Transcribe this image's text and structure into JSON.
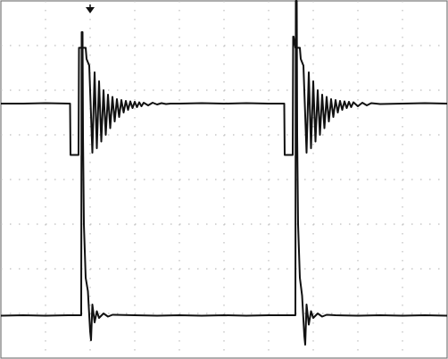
{
  "chart_data": {
    "type": "line",
    "title": "",
    "xlabel": "",
    "ylabel": "",
    "grid": true,
    "x_divisions": 10,
    "y_divisions": 8,
    "xlim": [
      0,
      10
    ],
    "ylim": [
      0,
      8
    ],
    "trigger_marker": {
      "icon": "trigger-arrow-icon",
      "x": 2.0
    },
    "series": [
      {
        "line_color": "#111111",
        "points": [
          [
            0.0,
            5.7
          ],
          [
            0.5,
            5.7
          ],
          [
            1.0,
            5.71
          ],
          [
            1.55,
            5.7
          ],
          [
            1.56,
            4.55
          ],
          [
            1.74,
            4.55
          ],
          [
            1.75,
            6.95
          ],
          [
            1.9,
            6.95
          ],
          [
            1.92,
            6.7
          ],
          [
            1.98,
            6.55
          ],
          [
            2.05,
            4.6
          ],
          [
            2.1,
            6.4
          ],
          [
            2.15,
            4.7
          ],
          [
            2.2,
            6.2
          ],
          [
            2.25,
            4.85
          ],
          [
            2.3,
            6.0
          ],
          [
            2.35,
            5.0
          ],
          [
            2.4,
            5.9
          ],
          [
            2.45,
            5.15
          ],
          [
            2.5,
            5.85
          ],
          [
            2.55,
            5.3
          ],
          [
            2.6,
            5.8
          ],
          [
            2.65,
            5.4
          ],
          [
            2.7,
            5.78
          ],
          [
            2.75,
            5.5
          ],
          [
            2.8,
            5.76
          ],
          [
            2.85,
            5.56
          ],
          [
            2.9,
            5.75
          ],
          [
            2.95,
            5.6
          ],
          [
            3.0,
            5.74
          ],
          [
            3.05,
            5.62
          ],
          [
            3.1,
            5.73
          ],
          [
            3.15,
            5.64
          ],
          [
            3.2,
            5.72
          ],
          [
            3.3,
            5.66
          ],
          [
            3.4,
            5.72
          ],
          [
            3.5,
            5.68
          ],
          [
            3.6,
            5.71
          ],
          [
            3.7,
            5.69
          ],
          [
            3.8,
            5.7
          ],
          [
            4.0,
            5.7
          ],
          [
            4.5,
            5.71
          ],
          [
            5.0,
            5.7
          ],
          [
            5.5,
            5.71
          ],
          [
            6.0,
            5.7
          ],
          [
            6.35,
            5.7
          ],
          [
            6.36,
            4.55
          ],
          [
            6.54,
            4.55
          ],
          [
            6.55,
            7.2
          ],
          [
            6.56,
            7.2
          ],
          [
            6.6,
            6.95
          ],
          [
            6.7,
            6.95
          ],
          [
            6.72,
            6.7
          ],
          [
            6.78,
            6.55
          ],
          [
            6.85,
            4.6
          ],
          [
            6.9,
            6.4
          ],
          [
            6.95,
            4.7
          ],
          [
            7.0,
            6.2
          ],
          [
            7.05,
            4.85
          ],
          [
            7.1,
            6.0
          ],
          [
            7.15,
            5.0
          ],
          [
            7.2,
            5.9
          ],
          [
            7.25,
            5.15
          ],
          [
            7.3,
            5.85
          ],
          [
            7.35,
            5.3
          ],
          [
            7.4,
            5.8
          ],
          [
            7.45,
            5.4
          ],
          [
            7.5,
            5.78
          ],
          [
            7.55,
            5.5
          ],
          [
            7.6,
            5.76
          ],
          [
            7.65,
            5.56
          ],
          [
            7.7,
            5.75
          ],
          [
            7.75,
            5.6
          ],
          [
            7.8,
            5.74
          ],
          [
            7.85,
            5.62
          ],
          [
            7.9,
            5.73
          ],
          [
            8.0,
            5.64
          ],
          [
            8.1,
            5.72
          ],
          [
            8.2,
            5.66
          ],
          [
            8.3,
            5.71
          ],
          [
            8.5,
            5.69
          ],
          [
            9.0,
            5.7
          ],
          [
            9.5,
            5.71
          ],
          [
            10.0,
            5.7
          ]
        ]
      },
      {
        "line_color": "#111111",
        "points": [
          [
            0.0,
            0.95
          ],
          [
            0.5,
            0.96
          ],
          [
            1.0,
            0.95
          ],
          [
            1.5,
            0.96
          ],
          [
            1.8,
            0.96
          ],
          [
            1.81,
            7.3
          ],
          [
            1.83,
            7.3
          ],
          [
            1.84,
            5.0
          ],
          [
            1.86,
            3.0
          ],
          [
            1.9,
            1.8
          ],
          [
            1.95,
            1.5
          ],
          [
            2.0,
            0.6
          ],
          [
            2.02,
            0.4
          ],
          [
            2.05,
            1.2
          ],
          [
            2.1,
            0.8
          ],
          [
            2.15,
            1.05
          ],
          [
            2.2,
            0.9
          ],
          [
            2.3,
            1.0
          ],
          [
            2.4,
            0.93
          ],
          [
            2.5,
            0.97
          ],
          [
            3.0,
            0.96
          ],
          [
            3.5,
            0.95
          ],
          [
            4.0,
            0.96
          ],
          [
            4.5,
            0.95
          ],
          [
            5.0,
            0.96
          ],
          [
            5.5,
            0.95
          ],
          [
            6.0,
            0.96
          ],
          [
            6.6,
            0.96
          ],
          [
            6.61,
            8.0
          ],
          [
            6.63,
            8.0
          ],
          [
            6.64,
            5.0
          ],
          [
            6.66,
            3.0
          ],
          [
            6.7,
            1.8
          ],
          [
            6.75,
            1.4
          ],
          [
            6.8,
            0.5
          ],
          [
            6.82,
            0.3
          ],
          [
            6.85,
            1.2
          ],
          [
            6.9,
            0.75
          ],
          [
            6.95,
            1.05
          ],
          [
            7.0,
            0.9
          ],
          [
            7.1,
            1.0
          ],
          [
            7.2,
            0.93
          ],
          [
            7.3,
            0.97
          ],
          [
            7.5,
            0.96
          ],
          [
            8.0,
            0.95
          ],
          [
            8.5,
            0.96
          ],
          [
            9.0,
            0.95
          ],
          [
            9.5,
            0.96
          ],
          [
            10.0,
            0.95
          ]
        ]
      }
    ]
  }
}
